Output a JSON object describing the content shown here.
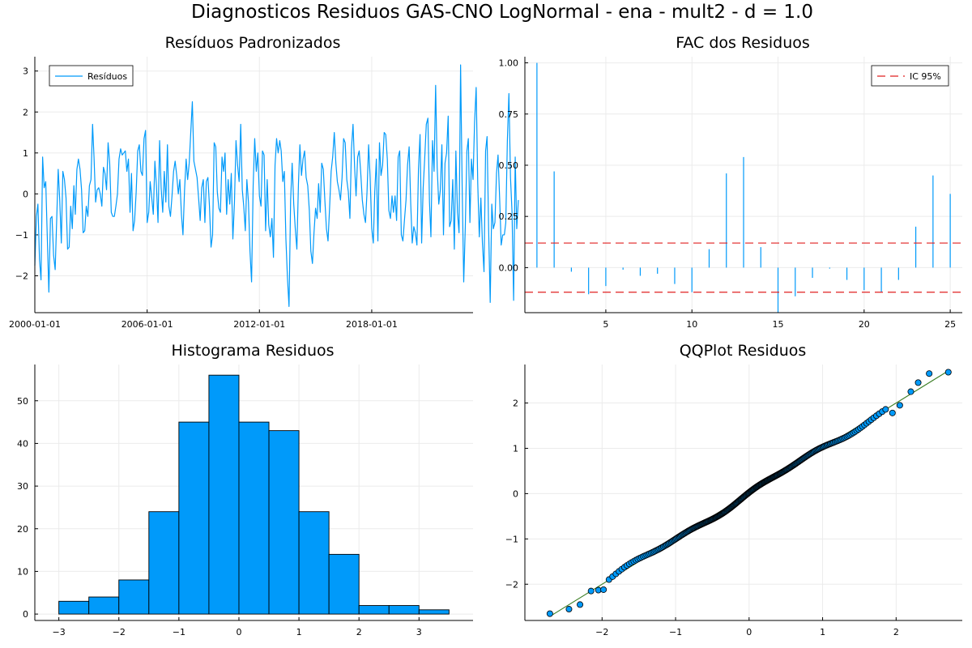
{
  "suptitle": "Diagnosticos Residuos  GAS-CNO LogNormal - ena - mult2 - d = 1.0",
  "colors": {
    "series": "#009AFA",
    "ci": "#E02020",
    "ref_line": "#3A7D22",
    "grid": "#EBEBEB"
  },
  "chart_data": [
    {
      "type": "line",
      "title": "Resíduos Padronizados",
      "legend_position": "top-left",
      "grid": true,
      "xlim": [
        "2000-01-01",
        "2023-06-01"
      ],
      "ylim": [
        -2.9,
        3.35
      ],
      "x_tick_labels": [
        "2000-01-01",
        "2006-01-01",
        "2012-01-01",
        "2018-01-01"
      ],
      "x_tick_values": [
        "2000-01-01",
        "2006-01-01",
        "2012-01-01",
        "2018-01-01"
      ],
      "y_ticks": [
        -2,
        -1,
        0,
        1,
        2,
        3
      ],
      "x_start": "2000-01-01",
      "x_frequency": "monthly",
      "series": [
        {
          "name": "Resíduos",
          "values": [
            -1.75,
            -0.55,
            -0.25,
            -1.6,
            -2.1,
            0.9,
            0.15,
            0.3,
            -1.1,
            -2.4,
            -0.6,
            -0.55,
            -1.5,
            -1.85,
            -0.7,
            0.6,
            -0.15,
            -1.2,
            0.55,
            0.35,
            -0.1,
            -1.35,
            -1.3,
            -0.3,
            -0.85,
            0.2,
            -0.5,
            0.6,
            0.85,
            0.6,
            0.1,
            -0.95,
            -0.9,
            -0.3,
            -0.55,
            0.2,
            0.35,
            1.7,
            0.9,
            -0.2,
            0.1,
            0.15,
            0.0,
            -0.3,
            0.65,
            0.5,
            0.1,
            1.25,
            0.75,
            -0.45,
            -0.55,
            -0.55,
            -0.3,
            0.0,
            0.85,
            1.1,
            0.95,
            1.0,
            1.05,
            0.55,
            0.85,
            -0.45,
            0.5,
            -0.9,
            -0.65,
            0.05,
            1.05,
            1.2,
            0.55,
            0.45,
            1.35,
            1.55,
            -0.7,
            -0.45,
            0.3,
            -0.1,
            -0.5,
            0.8,
            0.2,
            -0.7,
            1.3,
            0.15,
            -0.45,
            0.55,
            -0.2,
            1.2,
            -0.3,
            -0.55,
            -0.05,
            0.55,
            0.8,
            0.45,
            0.0,
            0.35,
            -0.5,
            -1.0,
            0.1,
            0.85,
            0.35,
            0.75,
            1.5,
            2.25,
            0.8,
            0.6,
            0.4,
            -0.1,
            -0.65,
            0.15,
            0.35,
            -0.7,
            0.3,
            0.4,
            -0.3,
            -1.3,
            -1.0,
            1.25,
            1.15,
            0.05,
            -0.35,
            -0.45,
            0.9,
            0.55,
            1.0,
            -0.5,
            0.35,
            -0.25,
            0.5,
            -1.1,
            -0.2,
            1.3,
            0.7,
            0.3,
            1.7,
            0.1,
            -0.3,
            -0.9,
            0.35,
            -0.2,
            -1.4,
            -2.15,
            0.2,
            1.35,
            0.55,
            1.0,
            -0.05,
            -0.3,
            1.05,
            0.95,
            -0.9,
            0.35,
            -0.75,
            -1.05,
            -0.6,
            -1.55,
            0.7,
            1.35,
            1.0,
            1.3,
            1.05,
            0.3,
            0.55,
            -1.1,
            -2.05,
            -2.75,
            -0.15,
            0.75,
            -0.25,
            -0.85,
            -1.35,
            0.25,
            1.2,
            0.45,
            0.85,
            1.05,
            0.4,
            0.2,
            -0.4,
            -1.4,
            -1.7,
            -0.95,
            -0.35,
            -0.6,
            0.25,
            -0.45,
            0.75,
            0.6,
            -0.15,
            -0.85,
            -1.15,
            -0.35,
            0.55,
            0.9,
            1.5,
            0.75,
            0.3,
            0.1,
            -0.15,
            0.4,
            1.35,
            1.25,
            0.35,
            0.05,
            -0.6,
            1.1,
            1.7,
            0.65,
            -0.05,
            0.9,
            1.05,
            0.5,
            -0.15,
            -0.5,
            -0.7,
            0.05,
            1.2,
            0.4,
            -0.85,
            -1.2,
            0.05,
            0.85,
            -1.15,
            1.25,
            0.45,
            0.7,
            1.5,
            1.45,
            0.85,
            -0.4,
            -0.6,
            -0.05,
            -0.45,
            -0.05,
            -0.65,
            0.9,
            1.05,
            -1.0,
            -1.15,
            -0.65,
            -0.15,
            0.7,
            1.15,
            -0.25,
            -1.2,
            -0.8,
            -0.95,
            -1.25,
            0.6,
            1.45,
            -1.2,
            0.15,
            0.9,
            1.7,
            1.85,
            -0.2,
            -1.05,
            1.3,
            0.55,
            2.65,
            0.65,
            -0.25,
            0.1,
            1.2,
            -1.0,
            0.75,
            1.0,
            1.9,
            -0.8,
            -0.65,
            0.35,
            -1.35,
            1.05,
            -0.45,
            -0.95,
            3.15,
            0.15,
            -2.15,
            -0.8,
            1.05,
            1.35,
            -0.7,
            0.85,
            0.35,
            1.75,
            2.6,
            0.25,
            -1.05,
            -0.1,
            -1.2,
            -1.9,
            1.05,
            1.4,
            -0.9,
            -2.65,
            -0.25,
            -0.85,
            -0.7,
            0.5,
            0.95,
            -0.1,
            -1.25,
            -1.0,
            -1.0,
            -0.7,
            1.3,
            2.45,
            0.4,
            -0.45,
            -2.6,
            0.9,
            -0.85,
            -0.15
          ]
        }
      ]
    },
    {
      "type": "bar",
      "title": "FAC dos Residuos",
      "legend_position": "top-right",
      "grid": true,
      "xlim": [
        0.3,
        25.7
      ],
      "ylim": [
        -0.22,
        1.03
      ],
      "x_ticks": [
        5,
        10,
        15,
        20,
        25
      ],
      "y_ticks": [
        0.0,
        0.25,
        0.5,
        0.75,
        1.0
      ],
      "y_tick_labels": [
        "0.00",
        "0.25",
        "0.50",
        "0.75",
        "1.00"
      ],
      "x": [
        1,
        2,
        3,
        4,
        5,
        6,
        7,
        8,
        9,
        10,
        11,
        12,
        13,
        14,
        15,
        16,
        17,
        18,
        19,
        20,
        21,
        22,
        23,
        24,
        25
      ],
      "values": [
        1.0,
        0.47,
        -0.02,
        -0.13,
        -0.09,
        -0.01,
        -0.04,
        -0.03,
        -0.08,
        -0.12,
        0.09,
        0.46,
        0.54,
        0.1,
        -0.22,
        -0.14,
        -0.05,
        -0.005,
        -0.06,
        -0.11,
        -0.12,
        -0.06,
        0.2,
        0.45,
        0.36
      ],
      "ci_label": "IC 95%",
      "ci_values": [
        0.12,
        -0.12
      ]
    },
    {
      "type": "bar",
      "title": "Histograma Residuos",
      "grid": true,
      "xlim": [
        -3.4,
        3.9
      ],
      "ylim": [
        -1.5,
        58.5
      ],
      "x_ticks": [
        -3,
        -2,
        -1,
        0,
        1,
        2,
        3
      ],
      "y_ticks": [
        0,
        10,
        20,
        30,
        40,
        50
      ],
      "bin_edges": [
        -3.0,
        -2.5,
        -2.0,
        -1.5,
        -1.0,
        -0.5,
        0.0,
        0.5,
        1.0,
        1.5,
        2.0,
        2.5,
        3.0,
        3.5
      ],
      "values": [
        3,
        4,
        8,
        24,
        45,
        56,
        45,
        43,
        24,
        14,
        2,
        2,
        1
      ]
    },
    {
      "type": "scatter",
      "title": "QQPlot Residuos",
      "grid": true,
      "xlim": [
        -3.05,
        2.9
      ],
      "ylim": [
        -2.8,
        2.85
      ],
      "x_ticks": [
        -2,
        -1,
        0,
        1,
        2
      ],
      "y_ticks": [
        -2,
        -1,
        0,
        1,
        2
      ],
      "n_points": 300,
      "reference_line": [
        [
          -2.7,
          -2.7
        ],
        [
          2.7,
          2.7
        ]
      ],
      "tail_points": [
        [
          -2.71,
          -2.65
        ],
        [
          -2.45,
          -2.55
        ],
        [
          -2.3,
          -2.45
        ],
        [
          -2.15,
          -2.15
        ],
        [
          -2.05,
          -2.13
        ],
        [
          -1.98,
          -2.12
        ],
        [
          1.95,
          1.78
        ],
        [
          2.05,
          1.95
        ],
        [
          2.2,
          2.25
        ],
        [
          2.3,
          2.45
        ],
        [
          2.45,
          2.65
        ],
        [
          2.71,
          2.68
        ]
      ]
    }
  ]
}
